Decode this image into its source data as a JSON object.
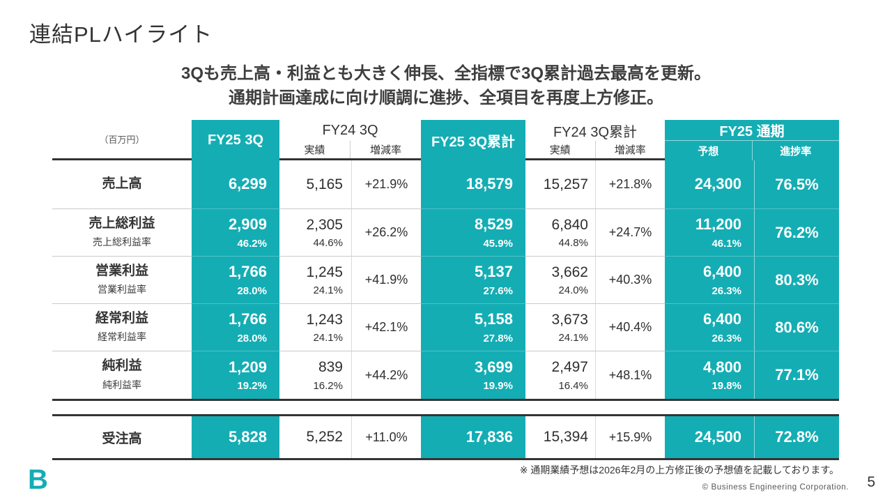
{
  "colors": {
    "accent": "#14adb4"
  },
  "title": "連結PLハイライト",
  "subtitle": {
    "line1": "3Qも売上高・利益とも大きく伸長、全指標で3Q累計過去最高を更新。",
    "line2": "通期計画達成に向け順調に進捗、全項目を再度上方修正。"
  },
  "table": {
    "unit_label": "（百万円）",
    "headers": {
      "fy25_3q": "FY25 3Q",
      "fy24_3q": "FY24 3Q",
      "fy25_3q_cum": "FY25 3Q累計",
      "fy24_3q_cum": "FY24 3Q累計",
      "fy25_full": "FY25 通期",
      "actual": "実績",
      "change": "増減率",
      "forecast": "予想",
      "progress": "進捗率"
    },
    "rows": [
      {
        "label": "売上高",
        "q": "6,299",
        "a": "5,165",
        "chg": "+21.9%",
        "cum": "18,579",
        "ca": "15,257",
        "cchg": "+21.8%",
        "fc": "24,300",
        "prog": "76.5%"
      },
      {
        "label": "売上総利益",
        "sublabel": "売上総利益率",
        "q": "2,909",
        "q_sub": "46.2%",
        "a": "2,305",
        "a_sub": "44.6%",
        "chg": "+26.2%",
        "cum": "8,529",
        "cum_sub": "45.9%",
        "ca": "6,840",
        "ca_sub": "44.8%",
        "cchg": "+24.7%",
        "fc": "11,200",
        "fc_sub": "46.1%",
        "prog": "76.2%"
      },
      {
        "label": "営業利益",
        "sublabel": "営業利益率",
        "q": "1,766",
        "q_sub": "28.0%",
        "a": "1,245",
        "a_sub": "24.1%",
        "chg": "+41.9%",
        "cum": "5,137",
        "cum_sub": "27.6%",
        "ca": "3,662",
        "ca_sub": "24.0%",
        "cchg": "+40.3%",
        "fc": "6,400",
        "fc_sub": "26.3%",
        "prog": "80.3%"
      },
      {
        "label": "経常利益",
        "sublabel": "経常利益率",
        "q": "1,766",
        "q_sub": "28.0%",
        "a": "1,243",
        "a_sub": "24.1%",
        "chg": "+42.1%",
        "cum": "5,158",
        "cum_sub": "27.8%",
        "ca": "3,673",
        "ca_sub": "24.1%",
        "cchg": "+40.4%",
        "fc": "6,400",
        "fc_sub": "26.3%",
        "prog": "80.6%"
      },
      {
        "label": "純利益",
        "sublabel": "純利益率",
        "q": "1,209",
        "q_sub": "19.2%",
        "a": "839",
        "a_sub": "16.2%",
        "chg": "+44.2%",
        "cum": "3,699",
        "cum_sub": "19.9%",
        "ca": "2,497",
        "ca_sub": "16.4%",
        "cchg": "+48.1%",
        "fc": "4,800",
        "fc_sub": "19.8%",
        "prog": "77.1%"
      }
    ]
  },
  "order_row": {
    "label": "受注高",
    "q": "5,828",
    "a": "5,252",
    "chg": "+11.0%",
    "cum": "17,836",
    "ca": "15,394",
    "cchg": "+15.9%",
    "fc": "24,500",
    "prog": "72.8%"
  },
  "footnote": "※ 通期業績予想は2026年2月の上方修正後の予想値を記載しております。",
  "footer": {
    "copyright": "© Business Engineering Corporation.",
    "page": "5",
    "logo_letter": "B"
  }
}
